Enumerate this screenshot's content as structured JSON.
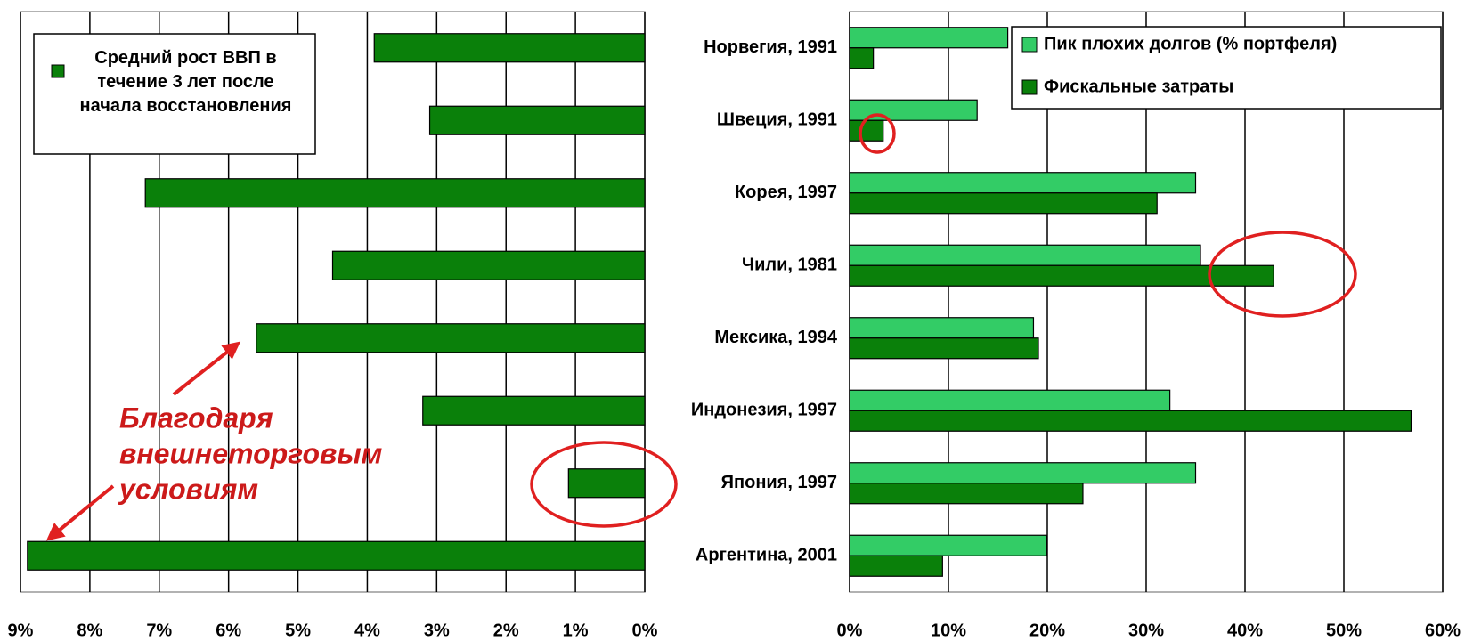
{
  "chart_data": [
    {
      "type": "hbar",
      "series": [
        {
          "name": "Средний рост ВВП в течение 3 лет после начала восстановления",
          "color": "#0a800a",
          "values": [
            3.9,
            3.1,
            7.2,
            4.5,
            5.6,
            3.2,
            1.1,
            8.9
          ]
        }
      ],
      "xlim": [
        9,
        0
      ],
      "xticks": [
        {
          "value": 9,
          "label": "9%"
        },
        {
          "value": 8,
          "label": "8%"
        },
        {
          "value": 7,
          "label": "7%"
        },
        {
          "value": 6,
          "label": "6%"
        },
        {
          "value": 5,
          "label": "5%"
        },
        {
          "value": 4,
          "label": "4%"
        },
        {
          "value": 3,
          "label": "3%"
        },
        {
          "value": 2,
          "label": "2%"
        },
        {
          "value": 1,
          "label": "1%"
        },
        {
          "value": 0,
          "label": "0%"
        }
      ],
      "grid": true,
      "legend": "upper left",
      "annotation": [
        "Благодаря",
        "внешнеторговым",
        "условиям"
      ]
    },
    {
      "type": "hbar",
      "categories": [
        "Норвегия, 1991",
        "Швеция, 1991",
        "Корея, 1997",
        "Чили, 1981",
        "Мексика, 1994",
        "Индонезия, 1997",
        "Япония, 1997",
        "Аргентина, 2001"
      ],
      "series": [
        {
          "name": "Пик плохих долгов (% портфеля)",
          "color": "#33cc66",
          "values": [
            16.0,
            12.9,
            35.0,
            35.5,
            18.6,
            32.4,
            35.0,
            19.9
          ]
        },
        {
          "name": "Фискальные затраты",
          "color": "#0a800a",
          "values": [
            2.4,
            3.4,
            31.1,
            42.9,
            19.1,
            56.8,
            23.6,
            9.4
          ]
        }
      ],
      "xlim": [
        0,
        60
      ],
      "xticks": [
        {
          "value": 0,
          "label": "0%"
        },
        {
          "value": 10,
          "label": "10%"
        },
        {
          "value": 20,
          "label": "20%"
        },
        {
          "value": 30,
          "label": "30%"
        },
        {
          "value": 40,
          "label": "40%"
        },
        {
          "value": 50,
          "label": "50%"
        },
        {
          "value": 60,
          "label": "60%"
        }
      ],
      "grid": true,
      "legend": "upper right"
    }
  ]
}
